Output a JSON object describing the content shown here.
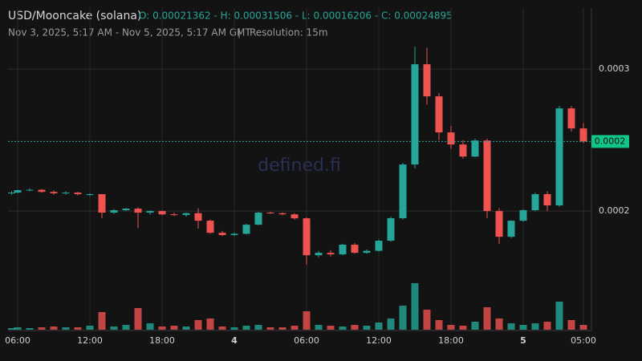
{
  "chart_data": {
    "type": "candlestick",
    "title": "USD/Mooncake (solana)",
    "ohlc_summary": "O: 0.00021362 - H: 0.00031506 - L: 0.00016206 - C: 0.00024895",
    "subtitle": "Nov 3, 2025, 5:17 AM - Nov 5, 2025, 5:17 AM GMT",
    "separator": "|",
    "resolution": "Resolution: 15m",
    "watermark": "defined.fi",
    "up_color": "#26a69a",
    "down_color": "#ef5350",
    "x": [
      5.5,
      6,
      7,
      8,
      9,
      10,
      11,
      12,
      13,
      14,
      15,
      16,
      17,
      18,
      19,
      20,
      21,
      22,
      23,
      24,
      25,
      26,
      27,
      28,
      29,
      30,
      31,
      32,
      33,
      34,
      35,
      36,
      37,
      38,
      39,
      40,
      41,
      42,
      43,
      44,
      45,
      46,
      47,
      48,
      49,
      50,
      51,
      52,
      53
    ],
    "open": [
      0.0002125,
      0.000213,
      0.0002147,
      0.000215,
      0.0002135,
      0.0002125,
      0.000213,
      0.0002119,
      0.0002119,
      0.0001989,
      0.0002006,
      0.0002017,
      0.0001989,
      0.0002,
      0.0001977,
      0.0001972,
      0.0001985,
      0.0001932,
      0.0001847,
      0.0001831,
      0.000184,
      0.0001904,
      0.0001989,
      0.0001985,
      0.0001977,
      0.0001949,
      0.0001689,
      0.0001706,
      0.0001695,
      0.0001763,
      0.0001706,
      0.000172,
      0.0001791,
      0.000195,
      0.0002328,
      0.0003034,
      0.0002808,
      0.0002554,
      0.0002469,
      0.0002384,
      0.0002497,
      0.0002,
      0.0001819,
      0.0001932,
      0.0002006,
      0.0002119,
      0.000204,
      0.0002723,
      0.0002582
    ],
    "high": [
      0.000214,
      0.000215,
      0.000216,
      0.0002155,
      0.0002145,
      0.000214,
      0.0002135,
      0.0002125,
      0.000212,
      0.0002015,
      0.000202,
      0.0002025,
      0.0002005,
      0.0002005,
      0.000199,
      0.000199,
      0.000202,
      0.000194,
      0.000186,
      0.000185,
      0.000191,
      0.0001995,
      0.0001995,
      0.000199,
      0.0001985,
      0.0001955,
      0.000172,
      0.0001725,
      0.000177,
      0.0001775,
      0.000173,
      0.00018,
      0.000196,
      0.000234,
      0.0003158,
      0.000315,
      0.000283,
      0.00026,
      0.00025,
      0.000251,
      0.000251,
      0.000202,
      0.0001935,
      0.0002015,
      0.000213,
      0.000214,
      0.000274,
      0.000274,
      0.000262
    ],
    "low": [
      0.0002115,
      0.0002125,
      0.000214,
      0.000213,
      0.0002115,
      0.0002115,
      0.000211,
      0.0002105,
      0.000195,
      0.000198,
      0.0002,
      0.000188,
      0.0001975,
      0.000197,
      0.0001965,
      0.000196,
      0.0001876,
      0.000184,
      0.0001825,
      0.0001825,
      0.0001835,
      0.00019,
      0.000198,
      0.000197,
      0.000194,
      0.0001621,
      0.0001675,
      0.000168,
      0.000169,
      0.00017,
      0.00017,
      0.0001715,
      0.0001785,
      0.000194,
      0.00023,
      0.000275,
      0.00025,
      0.000244,
      0.000237,
      0.000238,
      0.000195,
      0.000177,
      0.000181,
      0.0001925,
      0.0002,
      0.0002,
      0.000203,
      0.000256,
      0.000248
    ],
    "close": [
      0.000213,
      0.0002147,
      0.000215,
      0.0002135,
      0.0002125,
      0.000213,
      0.0002119,
      0.0002119,
      0.0001989,
      0.0002006,
      0.0002017,
      0.0001989,
      0.0002,
      0.0001977,
      0.0001972,
      0.0001985,
      0.0001932,
      0.0001847,
      0.0001831,
      0.000184,
      0.0001904,
      0.0001989,
      0.0001985,
      0.0001977,
      0.0001949,
      0.0001689,
      0.0001706,
      0.0001695,
      0.0001763,
      0.0001706,
      0.000172,
      0.0001791,
      0.000195,
      0.0002328,
      0.0003034,
      0.0002808,
      0.0002554,
      0.0002469,
      0.0002384,
      0.0002497,
      0.0002,
      0.0001819,
      0.0001932,
      0.0002006,
      0.0002119,
      0.000204,
      0.0002723,
      0.0002582,
      0.000249
    ],
    "volume": [
      2,
      3,
      2,
      3,
      4,
      3,
      3,
      5,
      22,
      4,
      6,
      27,
      8,
      4,
      5,
      4,
      12,
      14,
      4,
      3,
      5,
      6,
      3,
      3,
      5,
      23,
      6,
      5,
      4,
      6,
      5,
      9,
      14,
      30,
      58,
      25,
      12,
      6,
      5,
      10,
      28,
      14,
      8,
      6,
      8,
      10,
      35,
      12,
      6
    ],
    "xlim": [
      5.2,
      53.6
    ],
    "xticks": [
      {
        "value": 6,
        "label": "06:00"
      },
      {
        "value": 12,
        "label": "12:00"
      },
      {
        "value": 18,
        "label": "18:00"
      },
      {
        "value": 24,
        "label": "4"
      },
      {
        "value": 30,
        "label": "06:00"
      },
      {
        "value": 36,
        "label": "12:00"
      },
      {
        "value": 42,
        "label": "18:00"
      },
      {
        "value": 48,
        "label": "5"
      },
      {
        "value": 53,
        "label": "05:00"
      }
    ],
    "ylim": [
      0.000117,
      0.000343
    ],
    "yticks": [
      0.0002,
      0.0003
    ],
    "last_price": {
      "value": 0.000249,
      "label": "0.0002"
    },
    "grid": true
  }
}
